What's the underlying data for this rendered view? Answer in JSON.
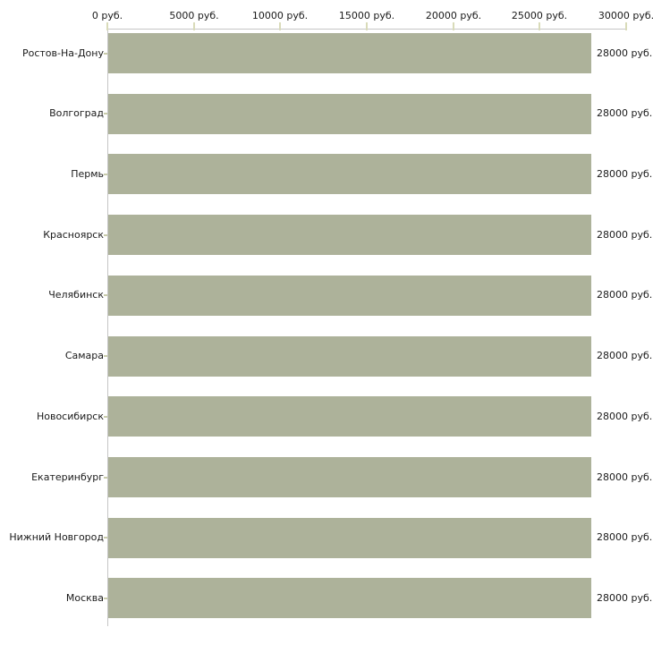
{
  "chart_data": {
    "type": "bar",
    "orientation": "horizontal",
    "title": "",
    "categories": [
      "Ростов-На-Дону",
      "Волгоград",
      "Пермь",
      "Красноярск",
      "Челябинск",
      "Самара",
      "Новосибирск",
      "Екатеринбург",
      "Нижний Новгород",
      "Москва"
    ],
    "values": [
      28000,
      28000,
      28000,
      28000,
      28000,
      28000,
      28000,
      28000,
      28000,
      28000
    ],
    "value_labels": [
      "28000 руб.",
      "28000 руб.",
      "28000 руб.",
      "28000 руб.",
      "28000 руб.",
      "28000 руб.",
      "28000 руб.",
      "28000 руб.",
      "28000 руб.",
      "28000 руб."
    ],
    "unit": "руб.",
    "x_axis": {
      "position": "top",
      "range": [
        0,
        30000
      ],
      "ticks": [
        0,
        5000,
        10000,
        15000,
        20000,
        25000,
        30000
      ],
      "tick_labels": [
        "0 руб.",
        "5000 руб.",
        "10000 руб.",
        "15000 руб.",
        "20000 руб.",
        "25000 руб.",
        "30000 руб."
      ]
    },
    "grid": false,
    "legend": false,
    "colors": {
      "bar": "#adb29a",
      "axis_line": "#c5c5c5",
      "axis_tick": "#d9dbb9",
      "category_tick": "#c9ccab",
      "text": "#1a1a1a",
      "background": "#ffffff"
    }
  }
}
